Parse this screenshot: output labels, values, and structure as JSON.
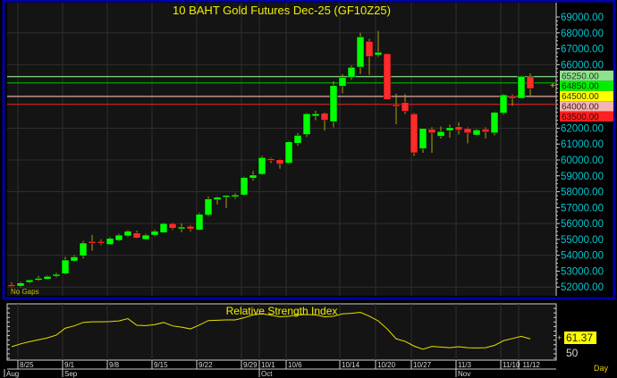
{
  "chart_data": {
    "type": "candlestick",
    "title": "10  BAHT  Gold  Futures  Dec-25  (GF10Z25)",
    "note": "No Gaps",
    "period_label": "Day",
    "y_range": [
      51450,
      69900
    ],
    "y_ticks": [
      69000,
      68000,
      67000,
      66000,
      62000,
      61000,
      60000,
      59000,
      58000,
      57000,
      56000,
      55000,
      54000,
      53000,
      52000
    ],
    "grid": true,
    "colors": {
      "up": "#00ff00",
      "down": "#ff2a2a",
      "wick": "#b0a000",
      "price_text": "#00c8d2",
      "title": "#f0f000",
      "grid": "#2e2e2e",
      "frame": "#0000a8"
    },
    "levels": [
      {
        "value": "65250.00",
        "price": 65250,
        "line": "#78c878",
        "bg": "#8fe08f",
        "fg": "#1a3a1a"
      },
      {
        "value": "64850.00",
        "price": 64850,
        "line": "#00a800",
        "bg": "#00f000",
        "fg": "#003000"
      },
      {
        "value": "64500.00",
        "price": 64500,
        "line": null,
        "bg": "#ffff00",
        "fg": "#303000"
      },
      {
        "value": "64000.00",
        "price": 64000,
        "line": "#e0a8a8",
        "bg": "#f4b4b4",
        "fg": "#402020"
      },
      {
        "value": "63500.00",
        "price": 63500,
        "line": "#d02020",
        "bg": "#ff2020",
        "fg": "#400000"
      }
    ],
    "candles": [
      {
        "d": "8/22",
        "o": 52150,
        "h": 52300,
        "l": 52000,
        "c": 52100
      },
      {
        "d": "8/25",
        "o": 52060,
        "h": 52330,
        "l": 51980,
        "c": 52260
      },
      {
        "d": "8/26",
        "o": 52300,
        "h": 52480,
        "l": 52230,
        "c": 52450
      },
      {
        "d": "8/27",
        "o": 52480,
        "h": 52700,
        "l": 52380,
        "c": 52550
      },
      {
        "d": "8/28",
        "o": 52500,
        "h": 52720,
        "l": 52480,
        "c": 52670
      },
      {
        "d": "8/29",
        "o": 52700,
        "h": 52900,
        "l": 52600,
        "c": 52800
      },
      {
        "d": "9/1",
        "o": 52840,
        "h": 53900,
        "l": 52800,
        "c": 53700
      },
      {
        "d": "9/2",
        "o": 53640,
        "h": 54000,
        "l": 53600,
        "c": 53900
      },
      {
        "d": "9/3",
        "o": 53970,
        "h": 54900,
        "l": 53800,
        "c": 54770
      },
      {
        "d": "9/4",
        "o": 54870,
        "h": 55280,
        "l": 54290,
        "c": 54760
      },
      {
        "d": "9/5",
        "o": 54870,
        "h": 55000,
        "l": 54650,
        "c": 54760
      },
      {
        "d": "9/8",
        "o": 54680,
        "h": 55150,
        "l": 54660,
        "c": 55070
      },
      {
        "d": "9/9",
        "o": 54940,
        "h": 55350,
        "l": 54880,
        "c": 55270
      },
      {
        "d": "9/10",
        "o": 55220,
        "h": 55600,
        "l": 55150,
        "c": 55520
      },
      {
        "d": "9/11",
        "o": 55410,
        "h": 55550,
        "l": 55050,
        "c": 55090
      },
      {
        "d": "9/12",
        "o": 55000,
        "h": 55350,
        "l": 54950,
        "c": 55270
      },
      {
        "d": "9/15",
        "o": 55270,
        "h": 55620,
        "l": 55200,
        "c": 55520
      },
      {
        "d": "9/16",
        "o": 55420,
        "h": 56050,
        "l": 55400,
        "c": 56000
      },
      {
        "d": "9/17",
        "o": 56000,
        "h": 56050,
        "l": 55600,
        "c": 55700
      },
      {
        "d": "9/18",
        "o": 55690,
        "h": 56000,
        "l": 55450,
        "c": 55780
      },
      {
        "d": "9/19",
        "o": 55830,
        "h": 55900,
        "l": 55500,
        "c": 55650
      },
      {
        "d": "9/22",
        "o": 55590,
        "h": 56680,
        "l": 55550,
        "c": 56580
      },
      {
        "d": "9/23",
        "o": 56530,
        "h": 57700,
        "l": 56450,
        "c": 57550
      },
      {
        "d": "9/24",
        "o": 57490,
        "h": 57700,
        "l": 57200,
        "c": 57660
      },
      {
        "d": "9/25",
        "o": 57660,
        "h": 57800,
        "l": 56980,
        "c": 57770
      },
      {
        "d": "9/26",
        "o": 57700,
        "h": 57900,
        "l": 57550,
        "c": 57800
      },
      {
        "d": "9/29",
        "o": 57800,
        "h": 58950,
        "l": 57750,
        "c": 58900
      },
      {
        "d": "9/30",
        "o": 58850,
        "h": 59300,
        "l": 58700,
        "c": 59050
      },
      {
        "d": "10/1",
        "o": 59100,
        "h": 60250,
        "l": 59050,
        "c": 60150
      },
      {
        "d": "10/2",
        "o": 60080,
        "h": 60150,
        "l": 59800,
        "c": 59970
      },
      {
        "d": "10/3",
        "o": 60020,
        "h": 60060,
        "l": 59450,
        "c": 59740
      },
      {
        "d": "10/6",
        "o": 59800,
        "h": 61200,
        "l": 59750,
        "c": 61140
      },
      {
        "d": "10/7",
        "o": 61050,
        "h": 61700,
        "l": 60900,
        "c": 61550
      },
      {
        "d": "10/8",
        "o": 61600,
        "h": 62950,
        "l": 61450,
        "c": 62910
      },
      {
        "d": "10/9",
        "o": 62760,
        "h": 63100,
        "l": 62500,
        "c": 62910
      },
      {
        "d": "10/10",
        "o": 62950,
        "h": 63000,
        "l": 61850,
        "c": 62500
      },
      {
        "d": "10/13",
        "o": 62410,
        "h": 64950,
        "l": 62050,
        "c": 64680
      },
      {
        "d": "10/14",
        "o": 64640,
        "h": 65400,
        "l": 64200,
        "c": 65190
      },
      {
        "d": "10/15",
        "o": 65190,
        "h": 65950,
        "l": 65050,
        "c": 65830
      },
      {
        "d": "10/16",
        "o": 65850,
        "h": 68000,
        "l": 65400,
        "c": 67750
      },
      {
        "d": "10/17",
        "o": 67470,
        "h": 67620,
        "l": 65350,
        "c": 66500
      },
      {
        "d": "10/20",
        "o": 66600,
        "h": 68120,
        "l": 66500,
        "c": 66780
      },
      {
        "d": "10/21",
        "o": 66690,
        "h": 66700,
        "l": 63800,
        "c": 63800
      },
      {
        "d": "10/22",
        "o": 63470,
        "h": 64180,
        "l": 62250,
        "c": 63400
      },
      {
        "d": "10/24",
        "o": 63620,
        "h": 64150,
        "l": 62900,
        "c": 63060
      },
      {
        "d": "10/27",
        "o": 62910,
        "h": 62950,
        "l": 60250,
        "c": 60450
      },
      {
        "d": "10/28",
        "o": 60710,
        "h": 61980,
        "l": 60450,
        "c": 61980
      },
      {
        "d": "10/29",
        "o": 61940,
        "h": 62050,
        "l": 60450,
        "c": 61700
      },
      {
        "d": "10/30",
        "o": 61490,
        "h": 62100,
        "l": 61350,
        "c": 61790
      },
      {
        "d": "10/31",
        "o": 61850,
        "h": 62220,
        "l": 61400,
        "c": 62030
      },
      {
        "d": "11/3",
        "o": 62090,
        "h": 62370,
        "l": 61600,
        "c": 61880
      },
      {
        "d": "11/4",
        "o": 61980,
        "h": 62050,
        "l": 61050,
        "c": 61700
      },
      {
        "d": "11/5",
        "o": 61570,
        "h": 61950,
        "l": 61500,
        "c": 61890
      },
      {
        "d": "11/6",
        "o": 61940,
        "h": 62050,
        "l": 61350,
        "c": 61760
      },
      {
        "d": "11/7",
        "o": 61700,
        "h": 63050,
        "l": 61550,
        "c": 63000
      },
      {
        "d": "11/10",
        "o": 62950,
        "h": 64150,
        "l": 62850,
        "c": 64100
      },
      {
        "d": "11/11",
        "o": 64030,
        "h": 64130,
        "l": 63400,
        "c": 63880
      },
      {
        "d": "11/12",
        "o": 63880,
        "h": 65300,
        "l": 63850,
        "c": 65270
      },
      {
        "d": "11/13",
        "o": 65240,
        "h": 65450,
        "l": 64000,
        "c": 64490
      }
    ],
    "x_tick_labels": [
      "8/25",
      "9/1",
      "9/8",
      "9/15",
      "9/22",
      "9/29",
      "10/1",
      "10/6",
      "10/14",
      "10/20",
      "10/27",
      "11/3",
      "11/10",
      "11/12"
    ],
    "month_labels": [
      {
        "label": "Aug",
        "d": "8/22"
      },
      {
        "label": "Sep",
        "d": "9/1"
      },
      {
        "label": "Oct",
        "d": "10/1"
      },
      {
        "label": "Nov",
        "d": "11/3"
      }
    ],
    "rsi": {
      "title": "Relative  Strength  Index",
      "last_value": "61.37",
      "ref_label": "50",
      "y_range": [
        38,
        100
      ],
      "color": "#e8e000",
      "values": [
        52.8,
        55.9,
        58.3,
        60.4,
        62.5,
        65.6,
        73.2,
        75.7,
        79.5,
        80.2,
        80.2,
        80.5,
        81.2,
        83.7,
        76.4,
        76.0,
        77.1,
        79.5,
        75.7,
        74.3,
        72.4,
        76.7,
        81.6,
        81.9,
        82.3,
        82.3,
        84.7,
        87.8,
        89.2,
        87.5,
        85.7,
        86.4,
        87.8,
        88.2,
        87.8,
        85.7,
        86.4,
        88.9,
        89.6,
        90.6,
        86.4,
        81.2,
        72.4,
        61.5,
        58.7,
        53.5,
        50.0,
        53.1,
        52.4,
        51.7,
        52.8,
        51.7,
        51.4,
        51.7,
        54.2,
        59.4,
        61.8,
        64.2,
        61.37
      ]
    }
  }
}
